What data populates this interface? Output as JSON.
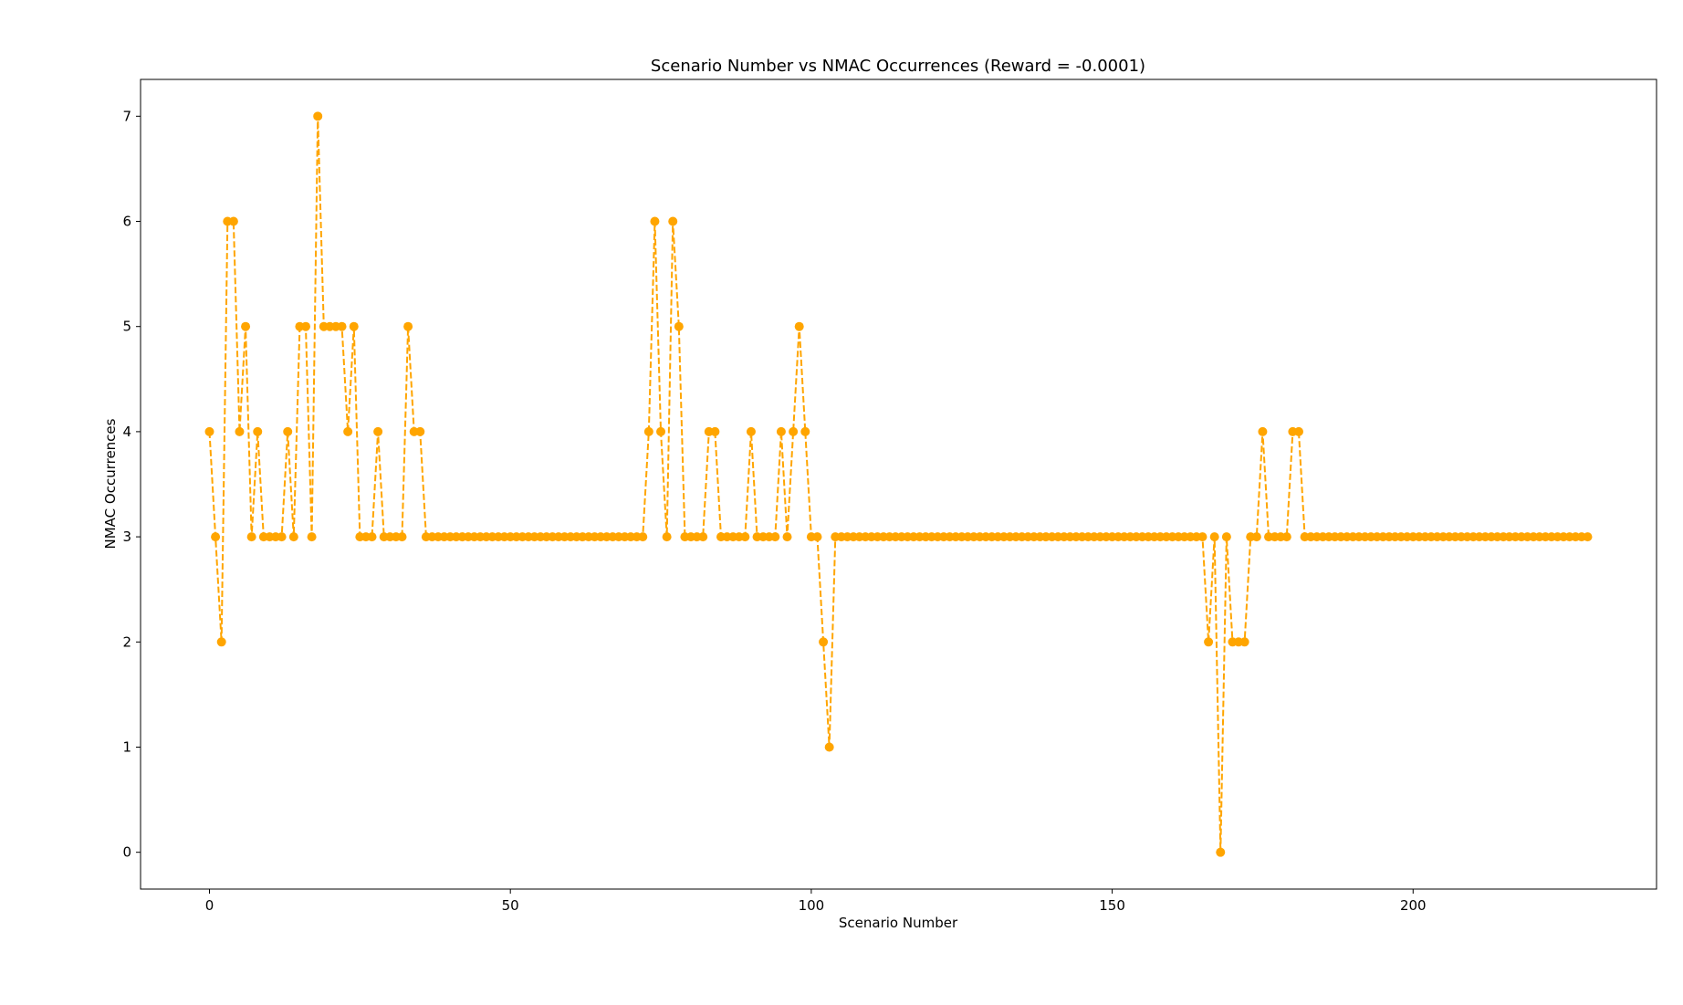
{
  "chart_data": {
    "type": "line",
    "title": "Scenario Number vs NMAC Occurrences (Reward = -0.0001)",
    "xlabel": "Scenario Number",
    "ylabel": "NMAC Occurrences",
    "xlim": [
      -11.45,
      240.45
    ],
    "ylim": [
      -0.35,
      7.35
    ],
    "xticks": [
      0,
      50,
      100,
      150,
      200
    ],
    "xtick_labels": [
      "0",
      "50",
      "100",
      "150",
      "200"
    ],
    "yticks": [
      0,
      1,
      2,
      3,
      4,
      5,
      6,
      7
    ],
    "ytick_labels": [
      "0",
      "1",
      "2",
      "3",
      "4",
      "5",
      "6",
      "7"
    ],
    "grid": false,
    "series": [
      {
        "name": "NMAC Occurrences",
        "color": "#FFA500",
        "linestyle": "dashed",
        "marker": "circle",
        "x_start": 0,
        "values": [
          4,
          3,
          2,
          6,
          6,
          4,
          5,
          3,
          4,
          3,
          3,
          3,
          3,
          4,
          3,
          5,
          5,
          3,
          7,
          5,
          5,
          5,
          5,
          4,
          5,
          3,
          3,
          3,
          4,
          3,
          3,
          3,
          3,
          5,
          4,
          4,
          3,
          3,
          3,
          3,
          3,
          3,
          3,
          3,
          3,
          3,
          3,
          3,
          3,
          3,
          3,
          3,
          3,
          3,
          3,
          3,
          3,
          3,
          3,
          3,
          3,
          3,
          3,
          3,
          3,
          3,
          3,
          3,
          3,
          3,
          3,
          3,
          3,
          4,
          6,
          4,
          3,
          6,
          5,
          3,
          3,
          3,
          3,
          4,
          4,
          3,
          3,
          3,
          3,
          3,
          4,
          3,
          3,
          3,
          3,
          4,
          3,
          4,
          5,
          4,
          3,
          3,
          2,
          1,
          3,
          3,
          3,
          3,
          3,
          3,
          3,
          3,
          3,
          3,
          3,
          3,
          3,
          3,
          3,
          3,
          3,
          3,
          3,
          3,
          3,
          3,
          3,
          3,
          3,
          3,
          3,
          3,
          3,
          3,
          3,
          3,
          3,
          3,
          3,
          3,
          3,
          3,
          3,
          3,
          3,
          3,
          3,
          3,
          3,
          3,
          3,
          3,
          3,
          3,
          3,
          3,
          3,
          3,
          3,
          3,
          3,
          3,
          3,
          3,
          3,
          3,
          2,
          3,
          0,
          3,
          2,
          2,
          2,
          3,
          3,
          4,
          3,
          3,
          3,
          3,
          4,
          4,
          3,
          3,
          3,
          3,
          3,
          3,
          3,
          3,
          3,
          3,
          3,
          3,
          3,
          3,
          3,
          3,
          3,
          3,
          3,
          3,
          3,
          3,
          3,
          3,
          3,
          3,
          3,
          3,
          3,
          3,
          3,
          3,
          3,
          3,
          3,
          3,
          3,
          3,
          3,
          3,
          3,
          3,
          3,
          3,
          3,
          3,
          3,
          3
        ]
      }
    ]
  }
}
